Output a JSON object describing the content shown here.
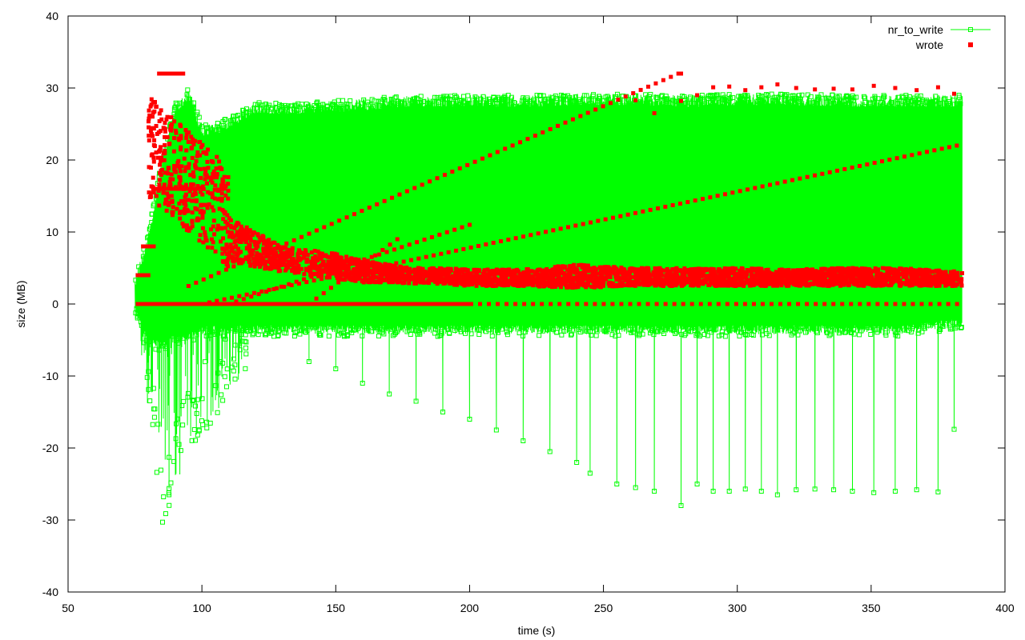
{
  "chart_data": {
    "type": "line",
    "title": "",
    "xlabel": "time (s)",
    "ylabel": "size (MB)",
    "xlim": [
      50,
      400
    ],
    "ylim": [
      -40,
      40
    ],
    "x_ticks": [
      50,
      100,
      150,
      200,
      250,
      300,
      350,
      400
    ],
    "y_ticks": [
      -40,
      -30,
      -20,
      -10,
      0,
      10,
      20,
      30,
      40
    ],
    "grid": false,
    "legend_position": "top-right",
    "series": [
      {
        "name": "nr_to_write",
        "style": "linespoints",
        "marker": "open-square",
        "color": "#00ff00",
        "envelope": {
          "x": [
            75,
            80,
            85,
            90,
            95,
            100,
            105,
            110,
            115,
            120,
            130,
            140,
            160,
            180,
            200,
            220,
            240,
            260,
            280,
            300,
            320,
            340,
            360,
            384
          ],
          "upper": [
            4,
            10,
            20,
            28,
            30,
            25,
            25,
            26,
            27,
            28,
            28,
            28,
            28.5,
            29,
            29,
            29,
            29.2,
            29.2,
            29,
            29.2,
            29.2,
            29,
            29,
            29
          ],
          "lower": [
            -1,
            -15,
            -31,
            -27,
            -20,
            -18,
            -16,
            -12,
            -10,
            -8,
            -6,
            -4,
            -4,
            -4,
            -4,
            -4,
            -4,
            -4,
            -4,
            -4,
            -4,
            -4,
            -4,
            -3
          ],
          "typical_low": [
            0,
            -5,
            -5,
            -4,
            -4,
            -3,
            -3,
            -3,
            -3,
            -3,
            -3,
            -3,
            -3,
            -3,
            -3,
            -3,
            -3,
            -3,
            -3,
            -3,
            -3,
            -3,
            -3,
            -2
          ]
        },
        "spikes": [
          [
            140,
            -8
          ],
          [
            150,
            -9
          ],
          [
            160,
            -11
          ],
          [
            170,
            -12.5
          ],
          [
            180,
            -13.5
          ],
          [
            190,
            -15
          ],
          [
            200,
            -16
          ],
          [
            210,
            -17.5
          ],
          [
            220,
            -19
          ],
          [
            230,
            -20.5
          ],
          [
            240,
            -22
          ],
          [
            245,
            -23.5
          ],
          [
            255,
            -25
          ],
          [
            262,
            -25.5
          ],
          [
            269,
            -26
          ],
          [
            279,
            -28
          ],
          [
            285,
            -25
          ],
          [
            291,
            -26
          ],
          [
            297,
            -26
          ],
          [
            303,
            -25.7
          ],
          [
            309,
            -26
          ],
          [
            315,
            -26.5
          ],
          [
            322,
            -25.8
          ],
          [
            329,
            -25.7
          ],
          [
            336,
            -25.8
          ],
          [
            343,
            -26
          ],
          [
            351,
            -26.2
          ],
          [
            359,
            -26
          ],
          [
            367,
            -25.8
          ],
          [
            375,
            -26.1
          ],
          [
            381,
            -17.4
          ]
        ]
      },
      {
        "name": "wrote",
        "style": "points",
        "marker": "filled-square",
        "color": "#ff0000",
        "band": {
          "x": [
            110,
            120,
            130,
            140,
            150,
            160,
            170,
            180,
            190,
            200,
            220,
            240,
            260,
            280,
            300,
            320,
            340,
            360,
            384
          ],
          "upper": [
            12,
            10,
            8,
            7.5,
            7,
            6,
            5.5,
            5,
            5,
            4.8,
            4.8,
            5.5,
            5,
            5,
            5,
            4.8,
            5,
            5,
            4.5
          ],
          "lower": [
            6,
            5,
            4.5,
            4,
            3.5,
            3,
            3,
            2.8,
            2.8,
            2.5,
            2.5,
            2.2,
            2.5,
            2.5,
            2.5,
            2.5,
            2.5,
            2.5,
            2.5
          ]
        },
        "early_cluster": {
          "x_range": [
            80,
            110
          ],
          "y_range": [
            5,
            32
          ],
          "ceiling": 32,
          "plateau": 16
        },
        "diagonals": [
          {
            "start": [
              95,
              2.5
            ],
            "end": [
              278,
              32
            ]
          },
          {
            "start": [
              100,
              0
            ],
            "end": [
              382,
              22
            ]
          },
          {
            "start": [
              110,
              0
            ],
            "end": [
              200,
              11
            ]
          },
          {
            "start": [
              140,
              0
            ],
            "end": [
              173,
              9
            ]
          }
        ],
        "zero_line": {
          "x_range": [
            76,
            385
          ],
          "y": 0
        },
        "outliers": [
          [
            279,
            32
          ],
          [
            285,
            29
          ],
          [
            291,
            30.1
          ],
          [
            297,
            30.2
          ],
          [
            303,
            29.7
          ],
          [
            309,
            30.1
          ],
          [
            315,
            30.5
          ],
          [
            322,
            30
          ],
          [
            329,
            29.8
          ],
          [
            336,
            29.9
          ],
          [
            343,
            29.8
          ],
          [
            351,
            30.3
          ],
          [
            359,
            30
          ],
          [
            367,
            29.7
          ],
          [
            375,
            30.1
          ],
          [
            381,
            29.2
          ],
          [
            269,
            26.5
          ],
          [
            262,
            28.3
          ],
          [
            279,
            28.2
          ]
        ]
      }
    ]
  }
}
